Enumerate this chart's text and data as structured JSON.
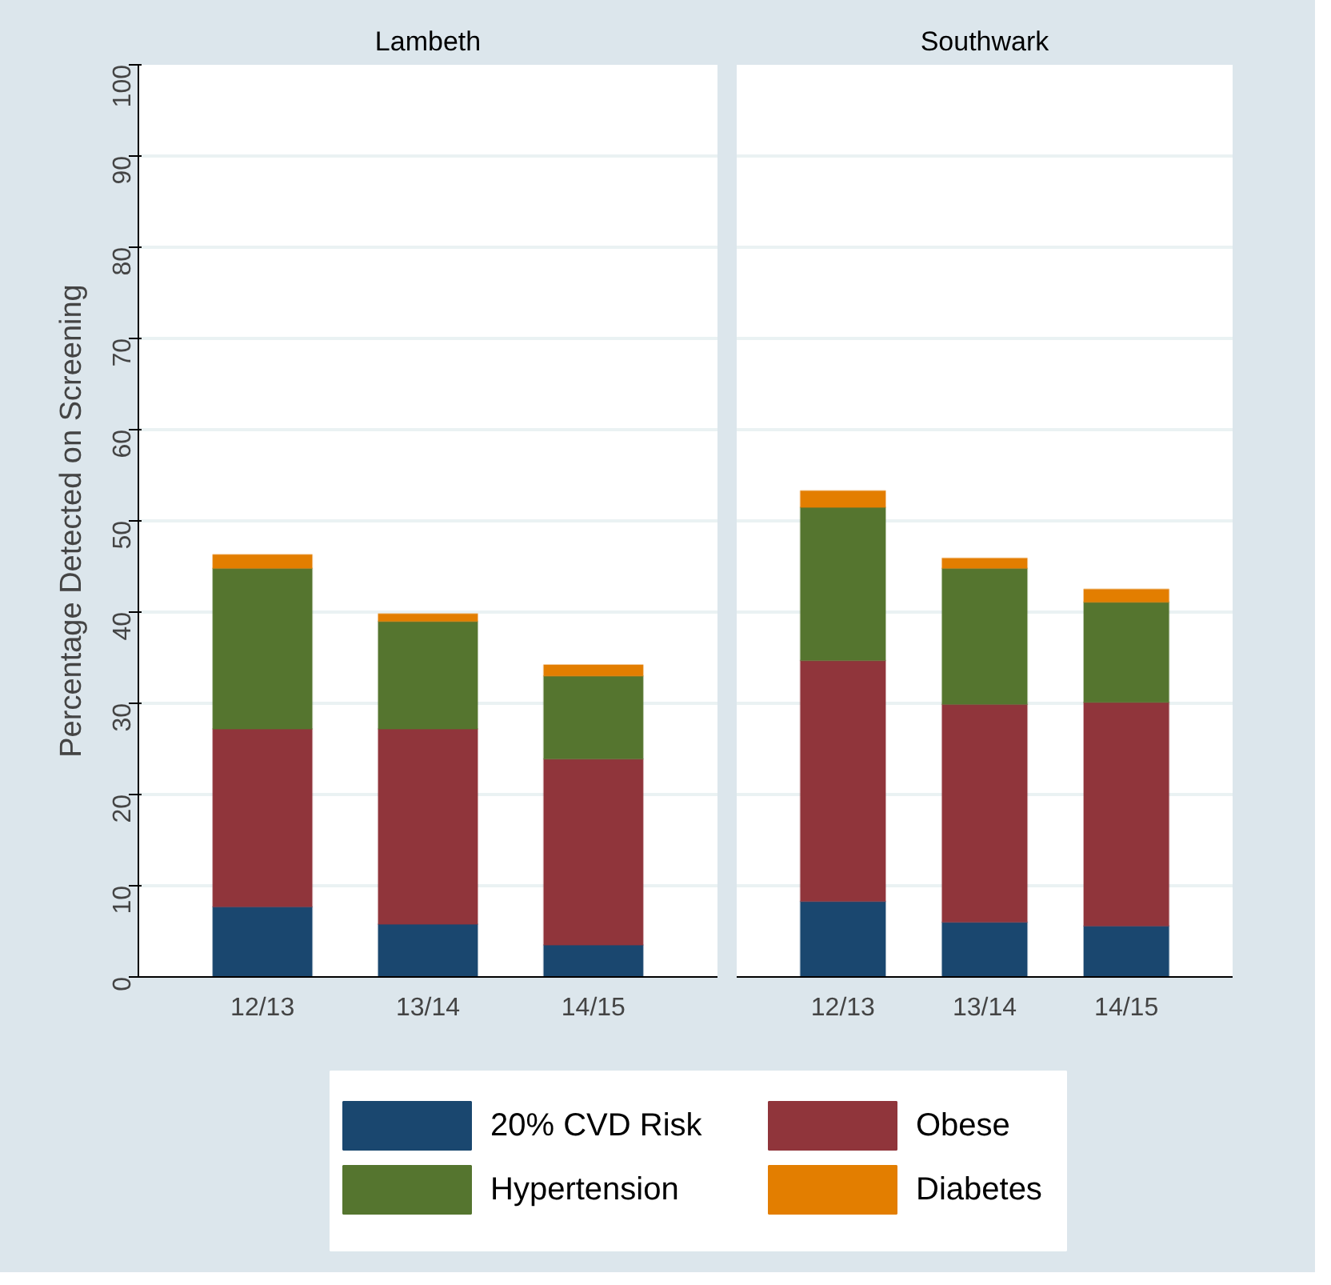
{
  "chart_data": [
    {
      "type": "bar",
      "title": "Lambeth",
      "ylabel": "Percentage Detected on Screening",
      "categories": [
        "12/13",
        "13/14",
        "14/15"
      ],
      "stacked": true,
      "ylim": [
        0,
        100
      ],
      "yticks": [
        0,
        10,
        20,
        30,
        40,
        50,
        60,
        70,
        80,
        90,
        100
      ],
      "grid": "y",
      "legend": "bottom",
      "series": [
        {
          "name": "20% CVD Risk",
          "color": "#1a476f",
          "values": [
            7.7,
            5.8,
            3.5
          ]
        },
        {
          "name": "Obese",
          "color": "#90353b",
          "values": [
            19.5,
            21.4,
            20.4
          ]
        },
        {
          "name": "Hypertension",
          "color": "#55752f",
          "values": [
            17.6,
            11.8,
            9.1
          ]
        },
        {
          "name": "Diabetes",
          "color": "#e37e00",
          "values": [
            1.5,
            0.8,
            1.2
          ]
        }
      ]
    },
    {
      "type": "bar",
      "title": "Southwark",
      "categories": [
        "12/13",
        "13/14",
        "14/15"
      ],
      "stacked": true,
      "ylim": [
        0,
        100
      ],
      "yticks": [
        0,
        10,
        20,
        30,
        40,
        50,
        60,
        70,
        80,
        90,
        100
      ],
      "grid": "y",
      "tick_labels": "x",
      "series": [
        {
          "color": "#1a476f",
          "values": [
            8.3,
            6.0,
            5.6
          ]
        },
        {
          "color": "#90353b",
          "values": [
            26.4,
            23.9,
            24.5
          ]
        },
        {
          "color": "#55752f",
          "values": [
            16.8,
            14.9,
            11.0
          ]
        },
        {
          "color": "#e37e00",
          "values": [
            1.8,
            1.1,
            1.4
          ]
        }
      ]
    }
  ]
}
